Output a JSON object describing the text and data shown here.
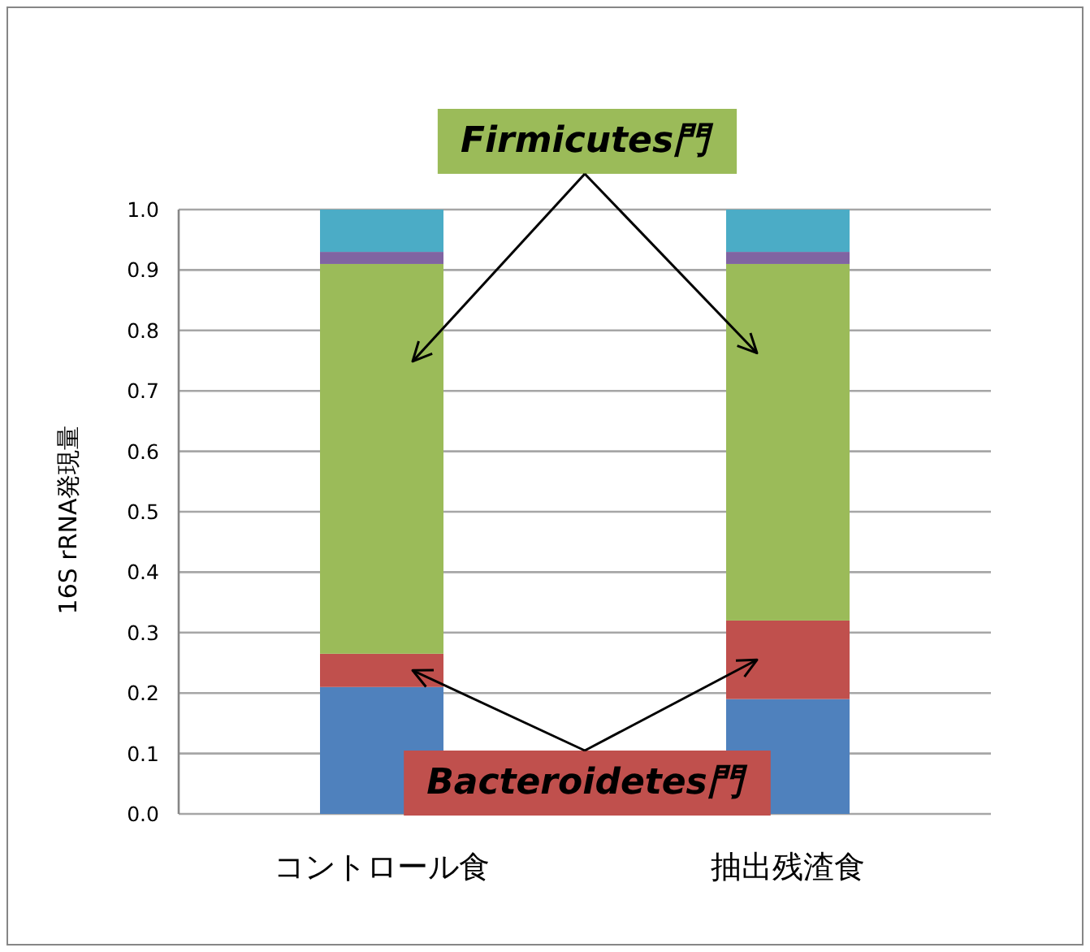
{
  "chart_data": {
    "type": "bar",
    "stacked": true,
    "categories": [
      "コントロール食",
      "抽出残渣食"
    ],
    "ylabel": "16S rRNA発現量",
    "series": [
      {
        "color": "#4f81bd",
        "values": [
          0.21,
          0.19
        ]
      },
      {
        "color": "#c0504d",
        "values": [
          0.055,
          0.13
        ]
      },
      {
        "color": "#9bbb59",
        "values": [
          0.645,
          0.59
        ]
      },
      {
        "color": "#8064a2",
        "values": [
          0.02,
          0.02
        ]
      },
      {
        "color": "#4bacc6",
        "values": [
          0.07,
          0.07
        ]
      }
    ],
    "ylim": [
      0,
      1
    ],
    "yticks": [
      {
        "value": 0,
        "label": "0.0"
      },
      0.1,
      0.2,
      0.3,
      0.4,
      0.5,
      0.6,
      0.7,
      0.8,
      0.9,
      {
        "value": 1,
        "label": "1.0"
      }
    ],
    "grid": "y",
    "annotations": [
      "Firmicutes門",
      "Bacteroidetes門"
    ]
  }
}
